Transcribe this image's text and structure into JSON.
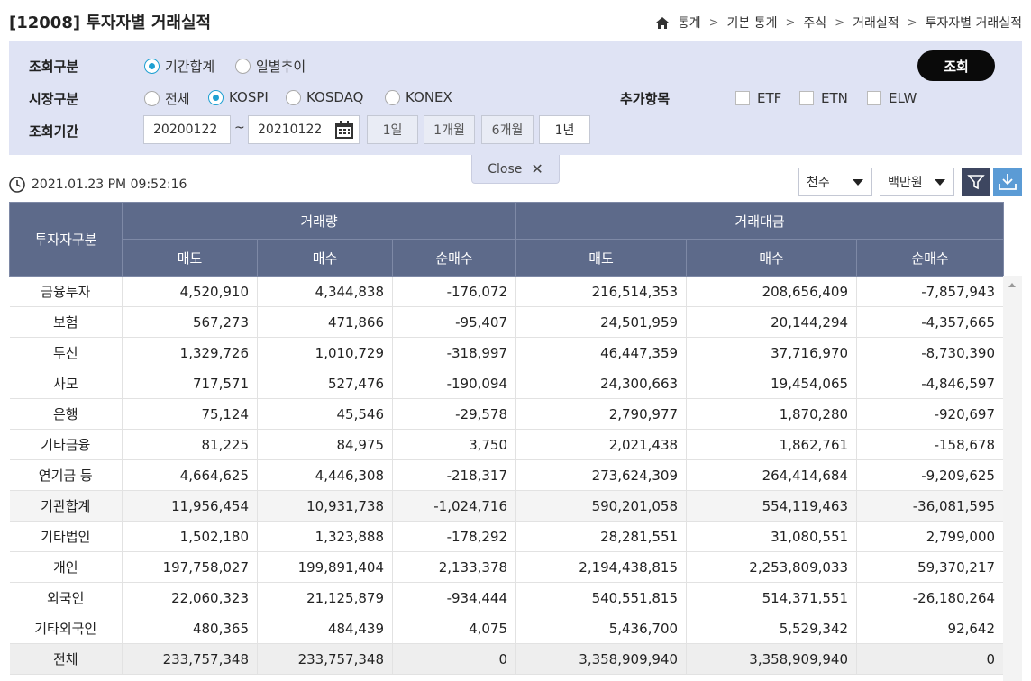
{
  "page": {
    "title": "[12008] 투자자별 거래실적"
  },
  "breadcrumb": [
    "통계",
    "기본 통계",
    "주식",
    "거래실적",
    "투자자별 거래실적"
  ],
  "filters": {
    "query_type_label": "조회구분",
    "query_types": [
      {
        "label": "기간합계",
        "selected": true
      },
      {
        "label": "일별추이",
        "selected": false
      }
    ],
    "market_label": "시장구분",
    "markets": [
      {
        "label": "전체",
        "selected": false
      },
      {
        "label": "KOSPI",
        "selected": true
      },
      {
        "label": "KOSDAQ",
        "selected": false
      },
      {
        "label": "KONEX",
        "selected": false
      }
    ],
    "extra_label": "추가항목",
    "extras": [
      {
        "label": "ETF",
        "checked": false
      },
      {
        "label": "ETN",
        "checked": false
      },
      {
        "label": "ELW",
        "checked": false
      }
    ],
    "period_label": "조회기간",
    "start_date": "20200122",
    "end_date": "20210122",
    "tilde": "~",
    "period_buttons": [
      "1일",
      "1개월",
      "6개월",
      "1년"
    ],
    "selected_period": "1년",
    "search_label": "조회",
    "close_label": "Close",
    "close_x": "✕"
  },
  "toolbar": {
    "timestamp": "2021.01.23 PM 09:52:16",
    "unit_volume": "천주",
    "unit_value": "백만원"
  },
  "table": {
    "header_investor": "투자자구분",
    "group_volume": "거래량",
    "group_value": "거래대금",
    "sub_headers": [
      "매도",
      "매수",
      "순매수",
      "매도",
      "매수",
      "순매수"
    ],
    "rows": [
      {
        "name": "금융투자",
        "vals": [
          "4,520,910",
          "4,344,838",
          "-176,072",
          "216,514,353",
          "208,656,409",
          "-7,857,943"
        ]
      },
      {
        "name": "보험",
        "vals": [
          "567,273",
          "471,866",
          "-95,407",
          "24,501,959",
          "20,144,294",
          "-4,357,665"
        ]
      },
      {
        "name": "투신",
        "vals": [
          "1,329,726",
          "1,010,729",
          "-318,997",
          "46,447,359",
          "37,716,970",
          "-8,730,390"
        ]
      },
      {
        "name": "사모",
        "vals": [
          "717,571",
          "527,476",
          "-190,094",
          "24,300,663",
          "19,454,065",
          "-4,846,597"
        ]
      },
      {
        "name": "은행",
        "vals": [
          "75,124",
          "45,546",
          "-29,578",
          "2,790,977",
          "1,870,280",
          "-920,697"
        ]
      },
      {
        "name": "기타금융",
        "vals": [
          "81,225",
          "84,975",
          "3,750",
          "2,021,438",
          "1,862,761",
          "-158,678"
        ]
      },
      {
        "name": "연기금 등",
        "vals": [
          "4,664,625",
          "4,446,308",
          "-218,317",
          "273,624,309",
          "264,414,684",
          "-9,209,625"
        ]
      },
      {
        "name": "기관합계",
        "vals": [
          "11,956,454",
          "10,931,738",
          "-1,024,716",
          "590,201,058",
          "554,119,463",
          "-36,081,595"
        ],
        "type": "sub"
      },
      {
        "name": "기타법인",
        "vals": [
          "1,502,180",
          "1,323,888",
          "-178,292",
          "28,281,551",
          "31,080,551",
          "2,799,000"
        ]
      },
      {
        "name": "개인",
        "vals": [
          "197,758,027",
          "199,891,404",
          "2,133,378",
          "2,194,438,815",
          "2,253,809,033",
          "59,370,217"
        ]
      },
      {
        "name": "외국인",
        "vals": [
          "22,060,323",
          "21,125,879",
          "-934,444",
          "540,551,815",
          "514,371,551",
          "-26,180,264"
        ]
      },
      {
        "name": "기타외국인",
        "vals": [
          "480,365",
          "484,439",
          "4,075",
          "5,436,700",
          "5,529,342",
          "92,642"
        ]
      },
      {
        "name": "전체",
        "vals": [
          "233,757,348",
          "233,757,348",
          "0",
          "3,358,909,940",
          "3,358,909,940",
          "0"
        ],
        "type": "total"
      }
    ]
  },
  "icons": {
    "home": "home-icon",
    "calendar": "calendar-icon",
    "clock": "clock-icon",
    "filter": "filter-icon",
    "download": "download-icon"
  },
  "colors": {
    "header_bg": "#5d6a8a",
    "filter_bg": "#dfe3f4",
    "radio_accent": "#1fa0d2",
    "download_bg": "#5b9bd5",
    "filter_btn_bg": "#3d4660"
  }
}
